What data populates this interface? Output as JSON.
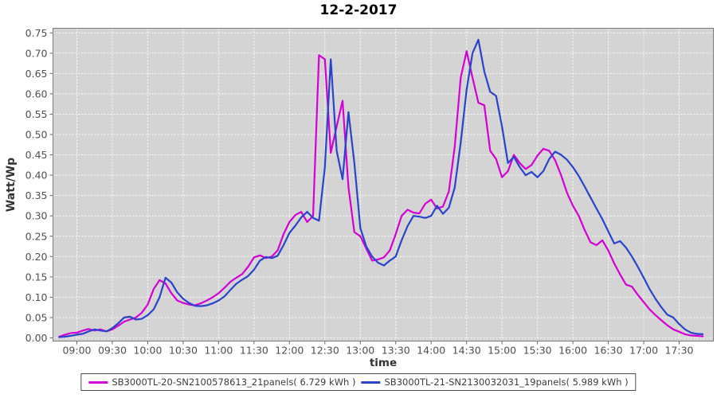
{
  "chart_data": {
    "type": "line",
    "title": "12-2-2017",
    "xlabel": "time",
    "ylabel": "Watt/Wp",
    "ylim": [
      0,
      0.75
    ],
    "y_tick_step": 0.05,
    "y_ticks": [
      "0.00",
      "0.05",
      "0.10",
      "0.15",
      "0.20",
      "0.25",
      "0.30",
      "0.35",
      "0.40",
      "0.45",
      "0.50",
      "0.55",
      "0.60",
      "0.65",
      "0.70",
      "0.75"
    ],
    "x_ticks": [
      "09:00",
      "09:30",
      "10:00",
      "10:30",
      "11:00",
      "11:30",
      "12:00",
      "12:30",
      "13:00",
      "13:30",
      "14:00",
      "14:30",
      "15:00",
      "15:30",
      "16:00",
      "16:30",
      "17:00",
      "17:30"
    ],
    "grid": {
      "shown": true,
      "line_color": "#ffffff",
      "line_style": "dashed",
      "plot_background": "#d4d4d4",
      "border_color": "#7a7a7a"
    },
    "legend_position": "bottom-center",
    "sampling": {
      "start_time": "08:45",
      "step_minutes": 5
    },
    "series": [
      {
        "name": "SB3000TL-20-SN2100578613_21panels( 6.729 kWh )",
        "color": "#d400d4",
        "values": [
          0.003,
          0.008,
          0.012,
          0.013,
          0.018,
          0.022,
          0.018,
          0.021,
          0.016,
          0.021,
          0.03,
          0.04,
          0.045,
          0.05,
          0.062,
          0.082,
          0.12,
          0.142,
          0.134,
          0.11,
          0.092,
          0.086,
          0.082,
          0.08,
          0.085,
          0.092,
          0.1,
          0.11,
          0.123,
          0.138,
          0.148,
          0.157,
          0.175,
          0.198,
          0.203,
          0.196,
          0.2,
          0.215,
          0.255,
          0.285,
          0.302,
          0.31,
          0.285,
          0.3,
          0.695,
          0.685,
          0.455,
          0.52,
          0.583,
          0.37,
          0.26,
          0.25,
          0.22,
          0.19,
          0.193,
          0.198,
          0.215,
          0.255,
          0.3,
          0.315,
          0.308,
          0.306,
          0.33,
          0.34,
          0.318,
          0.323,
          0.36,
          0.47,
          0.64,
          0.705,
          0.64,
          0.578,
          0.572,
          0.46,
          0.44,
          0.395,
          0.41,
          0.45,
          0.43,
          0.415,
          0.425,
          0.448,
          0.465,
          0.46,
          0.437,
          0.4,
          0.357,
          0.325,
          0.3,
          0.265,
          0.235,
          0.228,
          0.24,
          0.215,
          0.183,
          0.156,
          0.131,
          0.126,
          0.106,
          0.088,
          0.07,
          0.056,
          0.043,
          0.031,
          0.021,
          0.015,
          0.009,
          0.006,
          0.005,
          0.004
        ]
      },
      {
        "name": "SB3000TL-21-SN2130032031_19panels( 5.989 kWh )",
        "color": "#2943ca",
        "values": [
          0.002,
          0.003,
          0.005,
          0.008,
          0.01,
          0.016,
          0.021,
          0.018,
          0.016,
          0.024,
          0.036,
          0.05,
          0.052,
          0.045,
          0.047,
          0.056,
          0.07,
          0.1,
          0.148,
          0.136,
          0.112,
          0.096,
          0.086,
          0.079,
          0.078,
          0.08,
          0.085,
          0.092,
          0.102,
          0.118,
          0.133,
          0.143,
          0.152,
          0.168,
          0.19,
          0.199,
          0.196,
          0.202,
          0.228,
          0.258,
          0.276,
          0.296,
          0.31,
          0.295,
          0.288,
          0.42,
          0.685,
          0.46,
          0.39,
          0.555,
          0.43,
          0.27,
          0.225,
          0.2,
          0.185,
          0.178,
          0.19,
          0.2,
          0.24,
          0.275,
          0.3,
          0.298,
          0.295,
          0.3,
          0.325,
          0.305,
          0.32,
          0.37,
          0.48,
          0.61,
          0.7,
          0.733,
          0.655,
          0.605,
          0.595,
          0.52,
          0.43,
          0.445,
          0.42,
          0.4,
          0.408,
          0.395,
          0.41,
          0.44,
          0.458,
          0.45,
          0.438,
          0.42,
          0.398,
          0.372,
          0.345,
          0.318,
          0.292,
          0.262,
          0.232,
          0.238,
          0.222,
          0.2,
          0.175,
          0.148,
          0.12,
          0.096,
          0.075,
          0.057,
          0.05,
          0.034,
          0.021,
          0.013,
          0.01,
          0.009
        ]
      }
    ]
  }
}
